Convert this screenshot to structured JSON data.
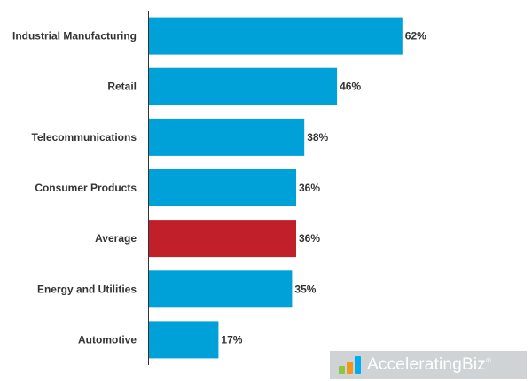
{
  "chart_data": {
    "type": "bar",
    "orientation": "horizontal",
    "categories": [
      "Industrial Manufacturing",
      "Retail",
      "Telecommunications",
      "Consumer Products",
      "Average",
      "Energy and Utilities",
      "Automotive"
    ],
    "values": [
      62,
      46,
      38,
      36,
      36,
      35,
      17
    ],
    "value_labels": [
      "62%",
      "46%",
      "38%",
      "36%",
      "36%",
      "35%",
      "17%"
    ],
    "highlight_category": "Average",
    "title": "",
    "xlabel": "",
    "ylabel": "",
    "xlim": [
      0,
      70
    ],
    "grid": false,
    "colors": {
      "bar": "#00a0d8",
      "highlight": "#c1202a",
      "axis": "#333333",
      "text": "#333333"
    }
  },
  "watermark": {
    "brand": "AcceleratingBiz",
    "mark": "®",
    "colors": {
      "background": "#cfd3d6",
      "logo_1": "#8dc63f",
      "logo_2": "#f7941d",
      "logo_3": "#00aeef"
    }
  }
}
